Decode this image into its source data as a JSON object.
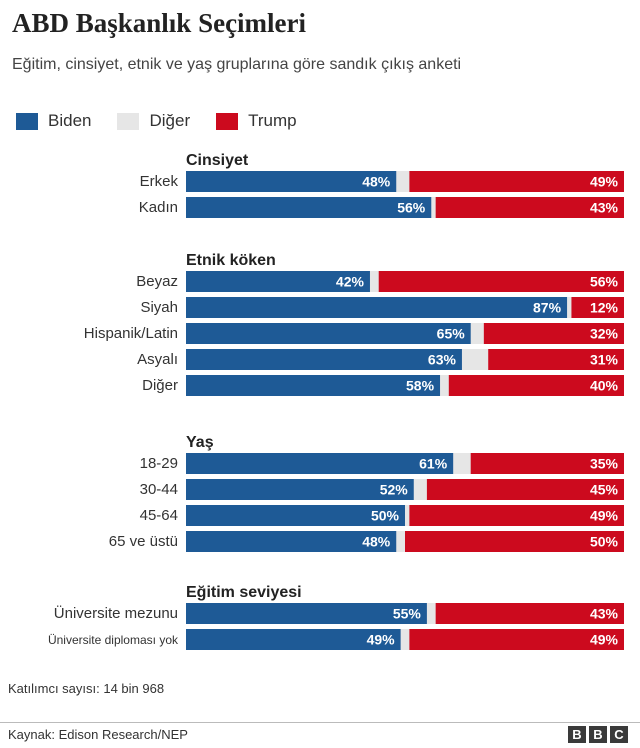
{
  "title": "ABD Başkanlık Seçimleri",
  "subtitle": "Eğitim, cinsiyet, etnik ve yaş gruplarına göre sandık çıkış anketi",
  "chart_data": {
    "type": "bar",
    "orientation": "horizontal",
    "stacked": true,
    "xlim": [
      0,
      100
    ],
    "unit": "%",
    "legend": {
      "placement": "top-left",
      "entries": [
        {
          "name": "Biden",
          "color": "#1e5a96"
        },
        {
          "name": "Diğer",
          "color": "#e6e6e6"
        },
        {
          "name": "Trump",
          "color": "#cc0a1e"
        }
      ]
    },
    "groups": [
      {
        "label": "Cinsiyet",
        "rows": [
          {
            "label": "Erkek",
            "biden": 48,
            "trump": 49
          },
          {
            "label": "Kadın",
            "biden": 56,
            "trump": 43
          }
        ]
      },
      {
        "label": "Etnik köken",
        "rows": [
          {
            "label": "Beyaz",
            "biden": 42,
            "trump": 56
          },
          {
            "label": "Siyah",
            "biden": 87,
            "trump": 12
          },
          {
            "label": "Hispanik/Latin",
            "biden": 65,
            "trump": 32
          },
          {
            "label": "Asyalı",
            "biden": 63,
            "trump": 31
          },
          {
            "label": "Diğer",
            "biden": 58,
            "trump": 40
          }
        ]
      },
      {
        "label": "Yaş",
        "rows": [
          {
            "label": "18-29",
            "biden": 61,
            "trump": 35
          },
          {
            "label": "30-44",
            "biden": 52,
            "trump": 45
          },
          {
            "label": "45-64",
            "biden": 50,
            "trump": 49
          },
          {
            "label": "65 ve üstü",
            "biden": 48,
            "trump": 50
          }
        ]
      },
      {
        "label": "Eğitim seviyesi",
        "rows": [
          {
            "label": "Üniversite mezunu",
            "biden": 55,
            "trump": 43
          },
          {
            "label": "Üniversite diploması yok",
            "biden": 49,
            "trump": 49
          }
        ]
      }
    ]
  },
  "note": "Katılımcı sayısı: 14 bin 968",
  "source": "Kaynak: Edison Research/NEP",
  "logo_letters": [
    "B",
    "B",
    "C"
  ]
}
